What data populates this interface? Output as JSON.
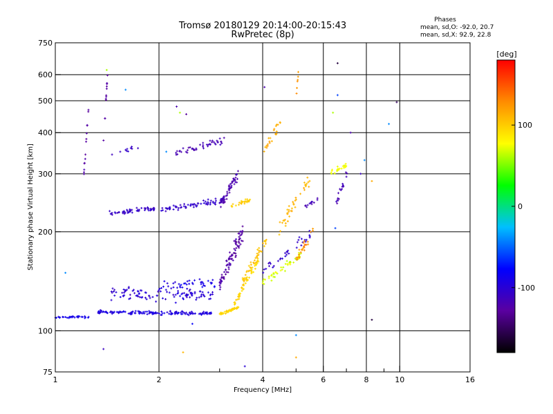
{
  "header": {
    "title_line1": "Tromsø 20180129 20:14:00-20:15:43",
    "title_line2": "RwPretec (8p)"
  },
  "stats": {
    "heading": "Phases",
    "line_o": "mean, sd,O: -92.0, 20.7",
    "line_x": "mean, sd,X: 92.9, 22.8"
  },
  "colorbar": {
    "unit_label": "[deg]",
    "ticks": [
      {
        "value": 100,
        "label": "100"
      },
      {
        "value": 0,
        "label": "0"
      },
      {
        "value": -100,
        "label": "-100"
      }
    ],
    "range": [
      -180,
      180
    ],
    "stops": [
      "#000000",
      "#5a00a0",
      "#0000ff",
      "#00bfff",
      "#00ff00",
      "#ffff00",
      "#ff8c00",
      "#ff0000"
    ]
  },
  "chart_data": {
    "type": "scatter",
    "xlabel": "Frequency [MHz]",
    "ylabel": "Stationary phase Virtual Height [km]",
    "xscale": "log",
    "yscale": "log",
    "xlim": [
      1,
      16
    ],
    "ylim": [
      75,
      750
    ],
    "x_ticks": [
      {
        "value": 1,
        "label": "1"
      },
      {
        "value": 2,
        "label": "2"
      },
      {
        "value": 4,
        "label": "4"
      },
      {
        "value": 6,
        "label": "6"
      },
      {
        "value": 8,
        "label": "8"
      },
      {
        "value": 10,
        "label": "10"
      },
      {
        "value": 16,
        "label": "16"
      }
    ],
    "x_gridlines": [
      1,
      2,
      4,
      6,
      8,
      10
    ],
    "x_minor": [
      3,
      5,
      7,
      9
    ],
    "y_ticks": [
      {
        "value": 75,
        "label": "75"
      },
      {
        "value": 100,
        "label": "100"
      },
      {
        "value": 200,
        "label": "200"
      },
      {
        "value": 300,
        "label": "300"
      },
      {
        "value": 400,
        "label": "400"
      },
      {
        "value": 500,
        "label": "500"
      },
      {
        "value": 600,
        "label": "600"
      },
      {
        "value": 750,
        "label": "750"
      }
    ],
    "y_gridlines": [
      100,
      200,
      300,
      400,
      500,
      600
    ],
    "grid": true,
    "traces": [
      {
        "f0": 1.0,
        "f1": 1.25,
        "h0": 110,
        "h1": 110,
        "n": 34,
        "phase": -90,
        "spread_h": 0.012,
        "spread_p": 12
      },
      {
        "f0": 1.33,
        "f1": 2.9,
        "h0": 114,
        "h1": 113,
        "n": 150,
        "phase": -95,
        "spread_h": 0.018,
        "spread_p": 15
      },
      {
        "f0": 1.45,
        "f1": 2.9,
        "h0": 130,
        "h1": 128,
        "n": 110,
        "phase": -100,
        "spread_h": 0.07,
        "spread_p": 18
      },
      {
        "f0": 2.0,
        "f1": 2.9,
        "h0": 136,
        "h1": 140,
        "n": 40,
        "phase": -90,
        "spread_h": 0.05,
        "spread_p": 15
      },
      {
        "f0": 1.4,
        "f1": 1.95,
        "h0": 226,
        "h1": 235,
        "n": 55,
        "phase": -108,
        "spread_h": 0.025,
        "spread_p": 12
      },
      {
        "f0": 2.0,
        "f1": 3.1,
        "h0": 232,
        "h1": 250,
        "n": 70,
        "phase": -105,
        "spread_h": 0.03,
        "spread_p": 12
      },
      {
        "f0": 2.2,
        "f1": 3.1,
        "h0": 345,
        "h1": 380,
        "n": 45,
        "phase": -118,
        "spread_h": 0.03,
        "spread_p": 10
      },
      {
        "f0": 3.0,
        "f1": 3.4,
        "h0": 240,
        "h1": 300,
        "n": 55,
        "phase": -120,
        "spread_h": 0.06,
        "spread_p": 12
      },
      {
        "f0": 3.0,
        "f1": 3.5,
        "h0": 140,
        "h1": 200,
        "n": 90,
        "phase": -125,
        "spread_h": 0.09,
        "spread_p": 15
      },
      {
        "f0": 3.0,
        "f1": 3.4,
        "h0": 112,
        "h1": 118,
        "n": 50,
        "phase": 95,
        "spread_h": 0.015,
        "spread_p": 10
      },
      {
        "f0": 3.3,
        "f1": 3.9,
        "h0": 120,
        "h1": 165,
        "n": 45,
        "phase": 95,
        "spread_h": 0.04,
        "spread_p": 12
      },
      {
        "f0": 3.5,
        "f1": 4.1,
        "h0": 140,
        "h1": 190,
        "n": 45,
        "phase": 105,
        "spread_h": 0.05,
        "spread_p": 12
      },
      {
        "f0": 3.2,
        "f1": 3.7,
        "h0": 240,
        "h1": 250,
        "n": 25,
        "phase": 100,
        "spread_h": 0.02,
        "spread_p": 12
      },
      {
        "f0": 4.0,
        "f1": 5.2,
        "h0": 140,
        "h1": 170,
        "n": 45,
        "phase": 70,
        "spread_h": 0.04,
        "spread_p": 15
      },
      {
        "f0": 4.0,
        "f1": 5.6,
        "h0": 150,
        "h1": 200,
        "n": 35,
        "phase": -105,
        "spread_h": 0.05,
        "spread_p": 12
      },
      {
        "f0": 4.4,
        "f1": 5.5,
        "h0": 200,
        "h1": 290,
        "n": 40,
        "phase": 110,
        "spread_h": 0.08,
        "spread_p": 12
      },
      {
        "f0": 5.0,
        "f1": 5.7,
        "h0": 165,
        "h1": 210,
        "n": 25,
        "phase": 125,
        "spread_h": 0.05,
        "spread_p": 15
      },
      {
        "f0": 5.3,
        "f1": 5.8,
        "h0": 240,
        "h1": 250,
        "n": 12,
        "phase": -115,
        "spread_h": 0.03,
        "spread_p": 10
      },
      {
        "f0": 4.0,
        "f1": 4.5,
        "h0": 350,
        "h1": 430,
        "n": 22,
        "phase": 115,
        "spread_h": 0.05,
        "spread_p": 12
      },
      {
        "f0": 6.3,
        "f1": 7.0,
        "h0": 300,
        "h1": 320,
        "n": 25,
        "phase": 75,
        "spread_h": 0.03,
        "spread_p": 10
      },
      {
        "f0": 6.5,
        "f1": 7.2,
        "h0": 240,
        "h1": 320,
        "n": 18,
        "phase": -115,
        "spread_h": 0.05,
        "spread_p": 10
      },
      {
        "f0": 1.2,
        "f1": 1.25,
        "h0": 260,
        "h1": 480,
        "n": 14,
        "phase": -125,
        "spread_h": 0.05,
        "spread_p": 10
      },
      {
        "f0": 1.38,
        "f1": 1.42,
        "h0": 370,
        "h1": 620,
        "n": 12,
        "phase": -125,
        "spread_h": 0.04,
        "spread_p": 10
      },
      {
        "f0": 1.45,
        "f1": 1.75,
        "h0": 345,
        "h1": 360,
        "n": 10,
        "phase": -110,
        "spread_h": 0.02,
        "spread_p": 10
      },
      {
        "f0": 5.0,
        "f1": 5.1,
        "h0": 500,
        "h1": 650,
        "n": 6,
        "phase": 125,
        "spread_h": 0.05,
        "spread_p": 10
      }
    ],
    "isolated_points": [
      {
        "x": 1.38,
        "y": 88,
        "phase": -110
      },
      {
        "x": 1.41,
        "y": 620,
        "phase": 60
      },
      {
        "x": 1.6,
        "y": 540,
        "phase": -40
      },
      {
        "x": 2.25,
        "y": 480,
        "phase": -120
      },
      {
        "x": 2.3,
        "y": 460,
        "phase": 60
      },
      {
        "x": 2.4,
        "y": 455,
        "phase": -130
      },
      {
        "x": 4.05,
        "y": 550,
        "phase": -120
      },
      {
        "x": 5.0,
        "y": 97,
        "phase": -40
      },
      {
        "x": 5.0,
        "y": 83,
        "phase": 115
      },
      {
        "x": 6.4,
        "y": 460,
        "phase": 60
      },
      {
        "x": 6.6,
        "y": 650,
        "phase": -160
      },
      {
        "x": 6.6,
        "y": 520,
        "phase": -60
      },
      {
        "x": 6.5,
        "y": 205,
        "phase": -60
      },
      {
        "x": 7.2,
        "y": 400,
        "phase": -120
      },
      {
        "x": 8.3,
        "y": 108,
        "phase": -160
      },
      {
        "x": 8.3,
        "y": 285,
        "phase": 115
      },
      {
        "x": 9.3,
        "y": 425,
        "phase": -40
      },
      {
        "x": 9.8,
        "y": 495,
        "phase": -150
      },
      {
        "x": 7.7,
        "y": 300,
        "phase": -110
      },
      {
        "x": 7.9,
        "y": 330,
        "phase": -40
      },
      {
        "x": 3.55,
        "y": 78,
        "phase": -100
      },
      {
        "x": 2.1,
        "y": 350,
        "phase": -40
      },
      {
        "x": 1.07,
        "y": 150,
        "phase": -40
      },
      {
        "x": 2.5,
        "y": 105,
        "phase": -80
      },
      {
        "x": 2.35,
        "y": 86,
        "phase": 110
      }
    ]
  }
}
